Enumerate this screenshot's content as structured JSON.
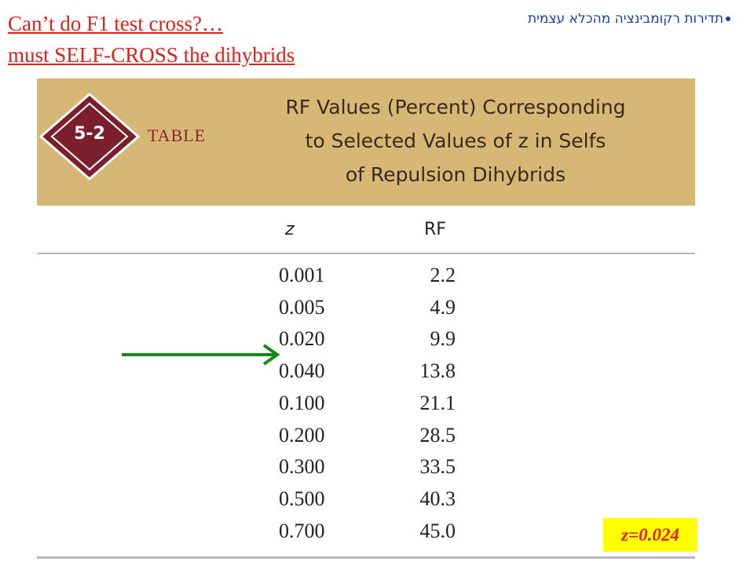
{
  "heading": {
    "line1": "Can’t do F1 test cross?…",
    "line2": "must SELF-CROSS the dihybrids"
  },
  "bullet": "תדירות רקומבינציה מהכלא עצמית",
  "table": {
    "badge": "5-2",
    "label": "TABLE",
    "title": [
      "RF Values (Percent) Corresponding",
      "to Selected Values of z in Selfs",
      "of Repulsion Dihybrids"
    ],
    "columns": [
      "z",
      "RF"
    ],
    "rows": [
      [
        "0.001",
        "2.2"
      ],
      [
        "0.005",
        "4.9"
      ],
      [
        "0.020",
        "9.9"
      ],
      [
        "0.040",
        "13.8"
      ],
      [
        "0.100",
        "21.1"
      ],
      [
        "0.200",
        "28.5"
      ],
      [
        "0.300",
        "33.5"
      ],
      [
        "0.500",
        "40.3"
      ],
      [
        "0.700",
        "45.0"
      ]
    ]
  },
  "note": "z=0.024"
}
